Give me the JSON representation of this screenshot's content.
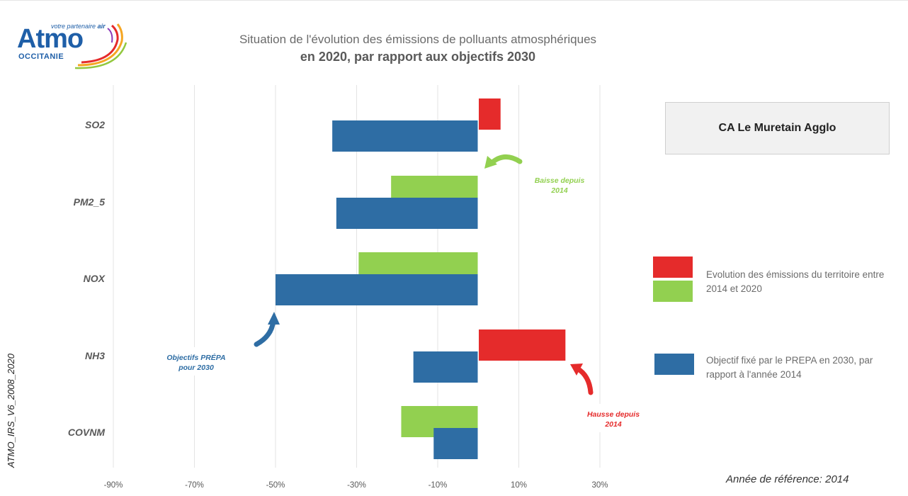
{
  "header": {
    "logo_main": "Atmo",
    "logo_tagline_1": "votre partenaire",
    "logo_tagline_2": "air",
    "logo_region": "OCCITANIE",
    "title_line1": "Situation de l'évolution des émissions de polluants atmosphériques",
    "title_line2": "en 2020, par rapport aux objectifs 2030"
  },
  "territory": "CA Le Muretain Agglo",
  "legend": {
    "evolution_text_1": "Evolution des émissions du territoire entre",
    "evolution_text_2": "2014 et 2020",
    "objective_text_1": "Objectif fixé par le PREPA en 2030, par",
    "objective_text_2": "rapport à l'année 2014"
  },
  "annotations": {
    "baisse_1": "Baisse depuis",
    "baisse_2": "2014",
    "hausse_1": "Hausse depuis",
    "hausse_2": "2014",
    "objectifs_1": "Objectifs PRÉPA",
    "objectifs_2": "pour 2030"
  },
  "side_label": "ATMO_IRS_V6_2008_2020",
  "reference_year": "Année de référence: 2014",
  "colors": {
    "increase": "#e52b2b",
    "decrease": "#92d050",
    "objective": "#2e6da4",
    "grid": "#e3e3e3"
  },
  "chart_data": {
    "type": "bar",
    "orientation": "horizontal",
    "categories": [
      "SO2",
      "PM2_5",
      "NOX",
      "NH3",
      "COVNM"
    ],
    "series": [
      {
        "name": "Evolution des émissions du territoire entre 2014 et 2020",
        "values": [
          5.5,
          -21.5,
          -29.5,
          21.5,
          -19
        ]
      },
      {
        "name": "Objectif fixé par le PREPA en 2030, par rapport à l'année 2014",
        "values": [
          -36,
          -35,
          -50,
          -16,
          -11
        ]
      }
    ],
    "xlim": [
      -90,
      30
    ],
    "xticks": [
      -90,
      -70,
      -50,
      -30,
      -10,
      10,
      30
    ],
    "xtick_labels": [
      "-90%",
      "-70%",
      "-50%",
      "-30%",
      "-10%",
      "10%",
      "30%"
    ],
    "grid": true,
    "legend_position": "right"
  }
}
